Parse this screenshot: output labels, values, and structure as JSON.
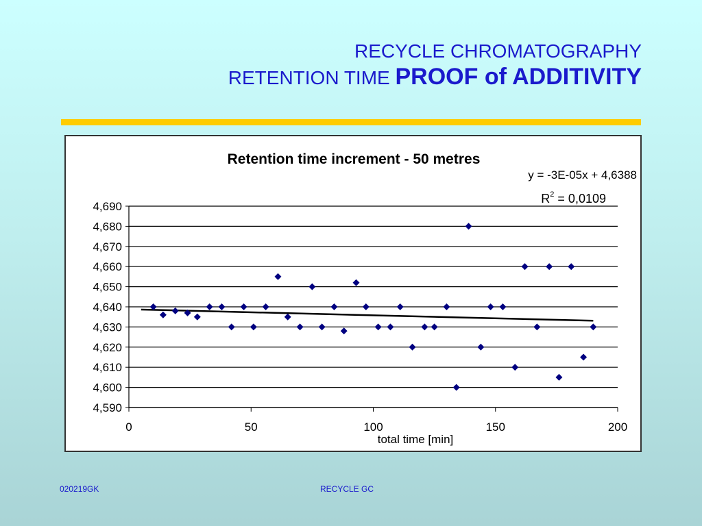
{
  "slide": {
    "title_line1": "RECYCLE CHROMATOGRAPHY",
    "title_line2_normal": "RETENTION TIME",
    "title_line2_bold": "PROOF of ADDITIVITY"
  },
  "footer": {
    "left": "020219GK",
    "center": "RECYCLE GC"
  },
  "colors": {
    "title": "#1a1acc",
    "rule": "#ffcc00",
    "marker": "#000080",
    "trendline": "#000000"
  },
  "chart_data": {
    "type": "scatter",
    "title": "Retention time increment - 50 metres",
    "xlabel": "total time [min]",
    "ylabel": "",
    "xlim": [
      0,
      200
    ],
    "ylim": [
      4.59,
      4.69
    ],
    "x_ticks": [
      "0",
      "50",
      "100",
      "150",
      "200"
    ],
    "y_ticks": [
      "4,590",
      "4,600",
      "4,610",
      "4,620",
      "4,630",
      "4,640",
      "4,650",
      "4,660",
      "4,670",
      "4,680",
      "4,690"
    ],
    "grid": "horizontal",
    "marker": "diamond",
    "trendline": {
      "type": "linear",
      "equation_label": "y = -3E-05x + 4,6388",
      "r2_prefix": "R",
      "r2_sup": "2",
      "r2_suffix": " = 0,0109",
      "slope": -3e-05,
      "intercept": 4.6388,
      "x_range": [
        5,
        190
      ]
    },
    "points": [
      {
        "x": 10,
        "y": 4.64
      },
      {
        "x": 14,
        "y": 4.636
      },
      {
        "x": 19,
        "y": 4.638
      },
      {
        "x": 24,
        "y": 4.637
      },
      {
        "x": 28,
        "y": 4.635
      },
      {
        "x": 33,
        "y": 4.64
      },
      {
        "x": 38,
        "y": 4.64
      },
      {
        "x": 42,
        "y": 4.63
      },
      {
        "x": 47,
        "y": 4.64
      },
      {
        "x": 51,
        "y": 4.63
      },
      {
        "x": 56,
        "y": 4.64
      },
      {
        "x": 61,
        "y": 4.655
      },
      {
        "x": 65,
        "y": 4.635
      },
      {
        "x": 70,
        "y": 4.63
      },
      {
        "x": 75,
        "y": 4.65
      },
      {
        "x": 79,
        "y": 4.63
      },
      {
        "x": 84,
        "y": 4.64
      },
      {
        "x": 88,
        "y": 4.628
      },
      {
        "x": 93,
        "y": 4.652
      },
      {
        "x": 97,
        "y": 4.64
      },
      {
        "x": 102,
        "y": 4.63
      },
      {
        "x": 107,
        "y": 4.63
      },
      {
        "x": 111,
        "y": 4.64
      },
      {
        "x": 116,
        "y": 4.62
      },
      {
        "x": 121,
        "y": 4.63
      },
      {
        "x": 125,
        "y": 4.63
      },
      {
        "x": 130,
        "y": 4.64
      },
      {
        "x": 134,
        "y": 4.6
      },
      {
        "x": 139,
        "y": 4.68
      },
      {
        "x": 144,
        "y": 4.62
      },
      {
        "x": 148,
        "y": 4.64
      },
      {
        "x": 153,
        "y": 4.64
      },
      {
        "x": 158,
        "y": 4.61
      },
      {
        "x": 162,
        "y": 4.66
      },
      {
        "x": 167,
        "y": 4.63
      },
      {
        "x": 172,
        "y": 4.66
      },
      {
        "x": 176,
        "y": 4.605
      },
      {
        "x": 181,
        "y": 4.66
      },
      {
        "x": 186,
        "y": 4.615
      },
      {
        "x": 190,
        "y": 4.63
      }
    ]
  }
}
